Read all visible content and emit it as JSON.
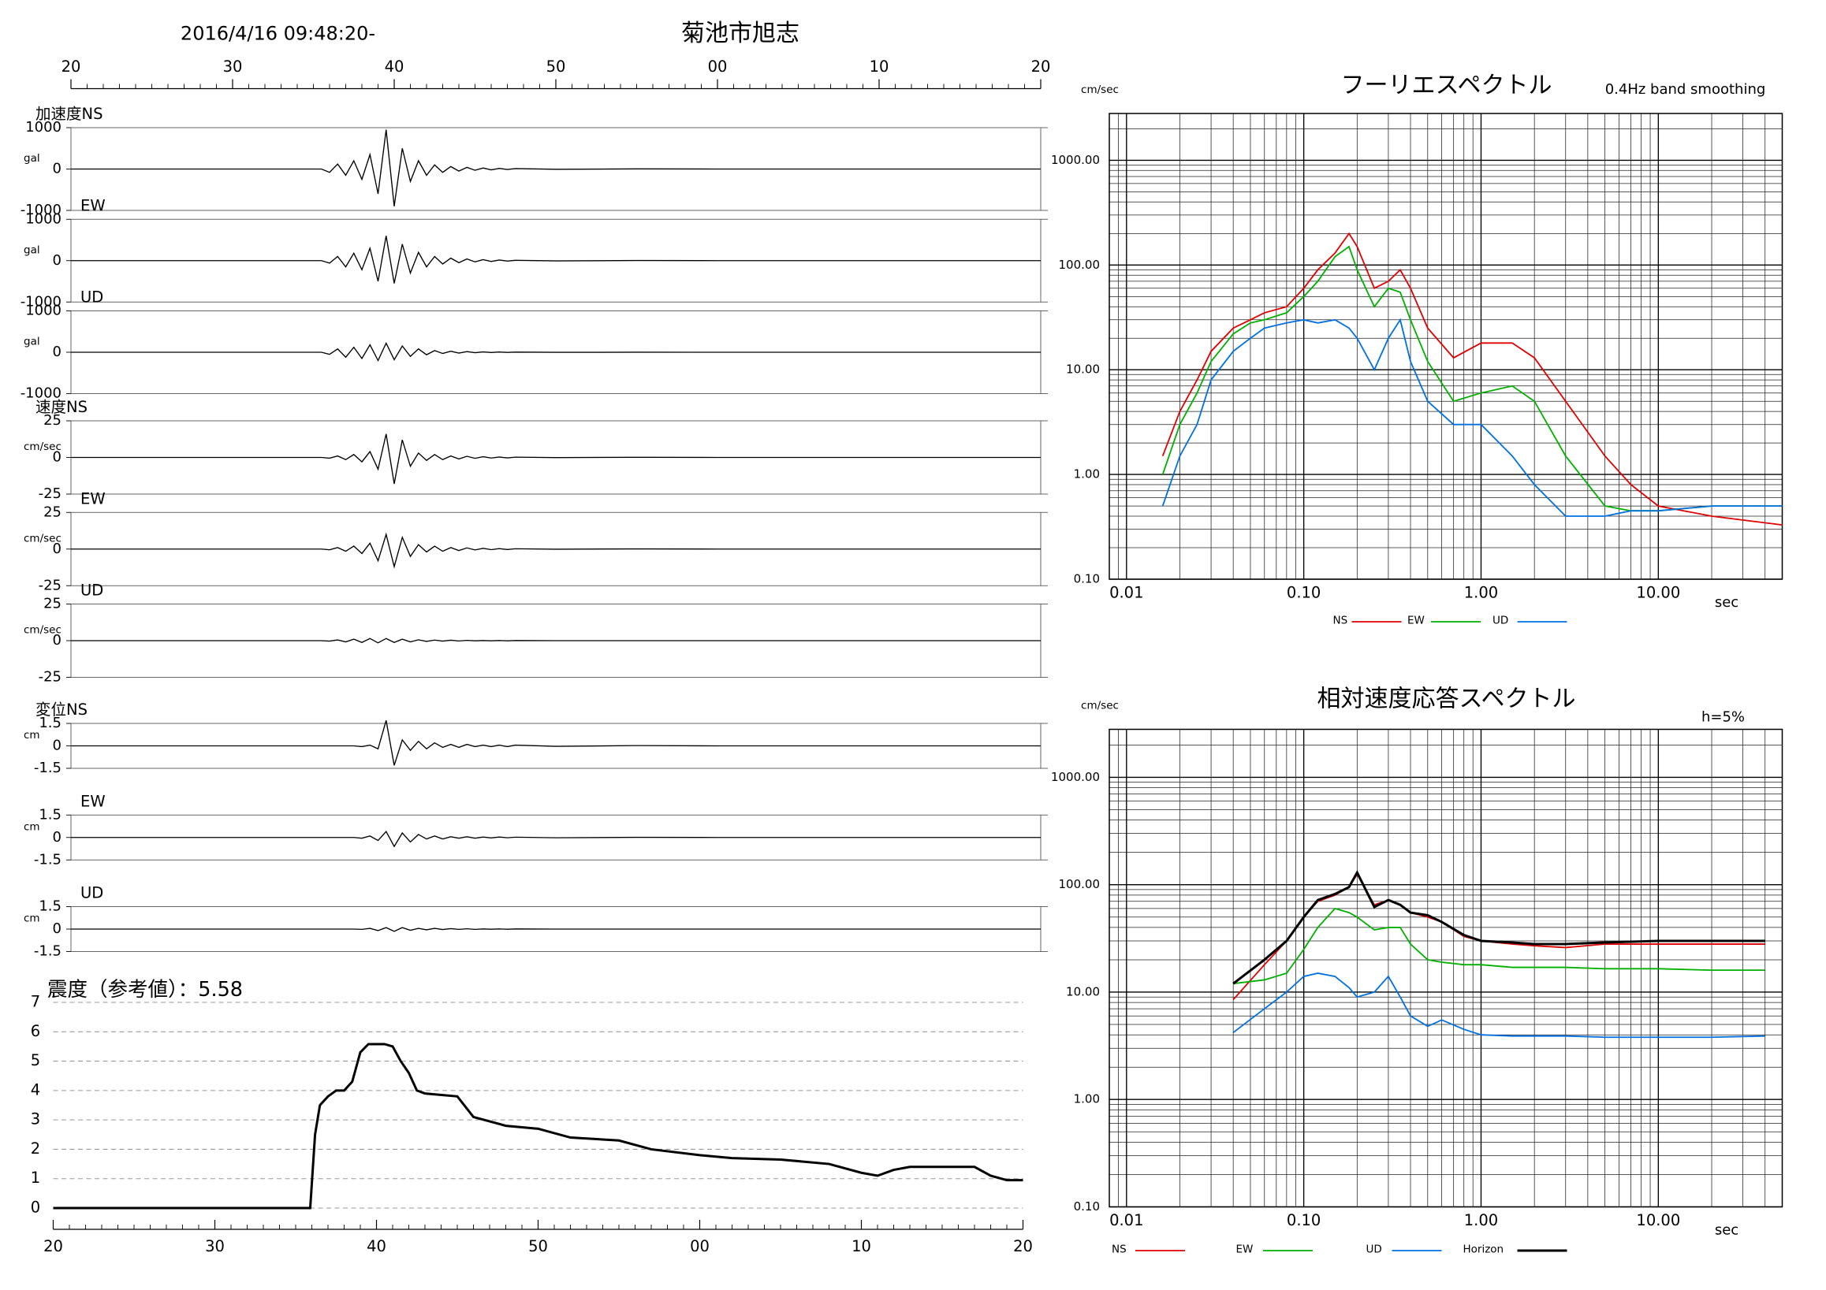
{
  "chart_data": [
    {
      "type": "waveform",
      "title": "菊池市旭志",
      "subtitle": "2016/4/16 09:48:20-",
      "xlim": [
        20,
        80
      ],
      "xticks": [
        20,
        30,
        40,
        50,
        {
          "value": 60,
          "label": "00"
        },
        {
          "value": 70,
          "label": "10"
        },
        {
          "value": 80,
          "label": "20"
        }
      ],
      "x": [
        20,
        35.5,
        36,
        36.5,
        37,
        37.5,
        38,
        38.5,
        39,
        39.5,
        40,
        40.5,
        41,
        41.5,
        42,
        42.5,
        43,
        43.5,
        44,
        44.5,
        45,
        45.5,
        46,
        46.5,
        47,
        47.5,
        50,
        55,
        60,
        80
      ],
      "color": "#000000",
      "panels": [
        {
          "label": "加速度NS",
          "unit": "gal",
          "ylim": [
            -1000,
            1000
          ],
          "yticks": [
            -1000,
            0,
            1000
          ],
          "values": [
            0,
            0,
            -80,
            120,
            -150,
            200,
            -250,
            350,
            -600,
            950,
            -900,
            500,
            -300,
            200,
            -150,
            100,
            -80,
            60,
            -50,
            40,
            -30,
            25,
            -20,
            15,
            -10,
            10,
            -5,
            3,
            0,
            0
          ]
        },
        {
          "label": "EW",
          "unit": "gal",
          "ylim": [
            -1000,
            1000
          ],
          "yticks": [
            -1000,
            0,
            1000
          ],
          "values": [
            0,
            0,
            -60,
            100,
            -150,
            180,
            -220,
            300,
            -500,
            600,
            -550,
            400,
            -300,
            200,
            -150,
            100,
            -80,
            60,
            -50,
            40,
            -30,
            25,
            -20,
            15,
            -10,
            8,
            -5,
            3,
            0,
            0
          ]
        },
        {
          "label": "UD",
          "unit": "gal",
          "ylim": [
            -1000,
            1000
          ],
          "yticks": [
            -1000,
            0,
            1000
          ],
          "values": [
            0,
            0,
            -50,
            80,
            -120,
            120,
            -150,
            180,
            -200,
            220,
            -180,
            150,
            -100,
            80,
            -60,
            40,
            -30,
            25,
            -20,
            15,
            -10,
            8,
            -6,
            5,
            -4,
            3,
            -2,
            1,
            0,
            0
          ]
        },
        {
          "label": "速度NS",
          "unit": "cm/sec",
          "ylim": [
            -25,
            25
          ],
          "yticks": [
            -25,
            0,
            25
          ],
          "values": [
            0,
            0,
            -0.5,
            1,
            -1.5,
            2,
            -3,
            4,
            -8,
            16,
            -18,
            12,
            -6,
            3,
            -2,
            2,
            -1.5,
            1,
            -1,
            0.8,
            -0.6,
            0.5,
            -0.4,
            0.3,
            -0.3,
            0.2,
            -0.1,
            0.1,
            0,
            0
          ]
        },
        {
          "label": "EW",
          "unit": "cm/sec",
          "ylim": [
            -25,
            25
          ],
          "yticks": [
            -25,
            0,
            25
          ],
          "values": [
            0,
            0,
            -0.5,
            1,
            -1.5,
            2,
            -3,
            4,
            -8,
            10,
            -12,
            8,
            -5,
            3,
            -2,
            2,
            -1.5,
            1,
            -1,
            0.8,
            -0.6,
            0.5,
            -0.4,
            0.3,
            -0.3,
            0.2,
            -0.1,
            0.1,
            0,
            0
          ]
        },
        {
          "label": "UD",
          "unit": "cm/sec",
          "ylim": [
            -25,
            25
          ],
          "yticks": [
            -25,
            0,
            25
          ],
          "values": [
            0,
            0,
            -0.3,
            0.5,
            -0.8,
            1,
            -1.2,
            1.5,
            -1.5,
            1.5,
            -1.2,
            1,
            -0.8,
            0.6,
            -0.5,
            0.4,
            -0.3,
            0.3,
            -0.2,
            0.2,
            -0.1,
            0.1,
            -0.1,
            0.1,
            -0.1,
            0.1,
            0,
            0,
            0,
            0
          ]
        },
        {
          "label": "変位NS",
          "unit": "cm",
          "ylim": [
            -1.5,
            1.5
          ],
          "yticks": [
            -1.5,
            0,
            1.5
          ],
          "values": [
            0,
            0,
            0,
            0,
            0,
            0,
            -0.05,
            0.05,
            -0.2,
            1.7,
            -1.3,
            0.4,
            -0.3,
            0.3,
            -0.2,
            0.2,
            -0.1,
            0.1,
            -0.1,
            0.1,
            -0.05,
            0.05,
            -0.05,
            0.05,
            -0.05,
            0.05,
            -0.03,
            0.02,
            0,
            0
          ]
        },
        {
          "label": "EW",
          "unit": "cm",
          "ylim": [
            -1.5,
            1.5
          ],
          "yticks": [
            -1.5,
            0,
            1.5
          ],
          "values": [
            0,
            0,
            0,
            0,
            0,
            0,
            -0.05,
            0.1,
            -0.2,
            0.4,
            -0.6,
            0.3,
            -0.3,
            0.2,
            -0.1,
            0.1,
            -0.1,
            0.05,
            -0.05,
            0.05,
            -0.05,
            0.03,
            -0.03,
            0.03,
            -0.02,
            0.02,
            -0.02,
            0.01,
            0,
            0
          ]
        },
        {
          "label": "UD",
          "unit": "cm",
          "ylim": [
            -1.5,
            1.5
          ],
          "yticks": [
            -1.5,
            0,
            1.5
          ],
          "values": [
            0,
            0,
            0,
            0,
            0,
            0,
            -0.02,
            0.05,
            -0.1,
            0.1,
            -0.15,
            0.1,
            -0.08,
            0.05,
            -0.05,
            0.05,
            -0.03,
            0.03,
            -0.02,
            0.02,
            -0.02,
            0.01,
            -0.01,
            0.01,
            -0.01,
            0.01,
            0,
            0,
            0,
            0
          ]
        }
      ]
    },
    {
      "type": "line",
      "title": "震度（参考値）：5.58",
      "color": "#000000",
      "grid": true,
      "xlim": [
        20,
        80
      ],
      "xticks": [
        20,
        30,
        40,
        50,
        {
          "value": 60,
          "label": "00"
        },
        {
          "value": 70,
          "label": "10"
        },
        {
          "value": 80,
          "label": "20"
        }
      ],
      "ylim": [
        0,
        7
      ],
      "yticks": [
        0,
        1,
        2,
        3,
        4,
        5,
        6,
        7
      ],
      "x": [
        20,
        35.9,
        36.2,
        36.5,
        37,
        37.5,
        38,
        38.5,
        39,
        39.5,
        40.5,
        41,
        41.5,
        42,
        42.5,
        43,
        45,
        46,
        48,
        50,
        52,
        55,
        57,
        60,
        62,
        65,
        68,
        70,
        71,
        72,
        73,
        77,
        78,
        79,
        80
      ],
      "values": [
        0,
        0,
        2.5,
        3.5,
        3.8,
        4.0,
        4.0,
        4.3,
        5.3,
        5.58,
        5.58,
        5.5,
        5.0,
        4.6,
        4.0,
        3.9,
        3.8,
        3.1,
        2.8,
        2.7,
        2.4,
        2.3,
        2.0,
        1.8,
        1.7,
        1.65,
        1.5,
        1.2,
        1.1,
        1.3,
        1.4,
        1.4,
        1.1,
        0.95,
        0.95
      ]
    },
    {
      "type": "loglog",
      "title": "フーリエスペクトル",
      "subtitle": "0.4Hz band smoothing",
      "y_label": "cm/sec",
      "x_label": "sec",
      "log_scale": true,
      "grid": true,
      "xlim": [
        0.008,
        50
      ],
      "xticks": [
        {
          "value": 0.01,
          "label": "0.01"
        },
        {
          "value": 0.1,
          "label": "0.10"
        },
        {
          "value": 1,
          "label": "1.00"
        },
        {
          "value": 10,
          "label": "10.00"
        }
      ],
      "ylim": [
        0.1,
        2800
      ],
      "yticks": [
        {
          "value": 0.1,
          "label": "0.10"
        },
        {
          "value": 1,
          "label": "1.00"
        },
        {
          "value": 10,
          "label": "10.00"
        },
        {
          "value": 100,
          "label": "100.00"
        },
        {
          "value": 1000,
          "label": "1000.00"
        }
      ],
      "x": [
        0.016,
        0.02,
        0.025,
        0.03,
        0.04,
        0.05,
        0.06,
        0.08,
        0.1,
        0.12,
        0.15,
        0.18,
        0.2,
        0.25,
        0.3,
        0.35,
        0.4,
        0.5,
        0.7,
        1.0,
        1.5,
        2,
        3,
        5,
        7,
        10,
        20,
        50
      ],
      "series": [
        {
          "name": "NS",
          "color": "#e00000",
          "values": [
            1.5,
            4,
            8,
            15,
            25,
            30,
            35,
            40,
            60,
            90,
            130,
            200,
            150,
            60,
            70,
            90,
            60,
            25,
            13,
            18,
            18,
            13,
            5,
            1.5,
            0.8,
            0.5,
            0.4,
            0.33
          ]
        },
        {
          "name": "EW",
          "color": "#00b000",
          "values": [
            1,
            3,
            6,
            12,
            22,
            28,
            30,
            35,
            50,
            70,
            120,
            150,
            90,
            40,
            60,
            55,
            30,
            12,
            5,
            6,
            7,
            5,
            1.5,
            0.5,
            0.45,
            0.45,
            0.5,
            0.5
          ]
        },
        {
          "name": "UD",
          "color": "#0070e0",
          "values": [
            0.5,
            1.5,
            3,
            8,
            15,
            20,
            25,
            28,
            30,
            28,
            30,
            25,
            20,
            10,
            20,
            30,
            12,
            5,
            3,
            3,
            1.5,
            0.8,
            0.4,
            0.4,
            0.45,
            0.45,
            0.5,
            0.5
          ]
        }
      ]
    },
    {
      "type": "loglog",
      "title": "相対速度応答スペクトル",
      "annotation": "h=5%",
      "y_label": "cm/sec",
      "x_label": "sec",
      "log_scale": true,
      "grid": true,
      "xlim": [
        0.008,
        50
      ],
      "xticks": [
        {
          "value": 0.01,
          "label": "0.01"
        },
        {
          "value": 0.1,
          "label": "0.10"
        },
        {
          "value": 1,
          "label": "1.00"
        },
        {
          "value": 10,
          "label": "10.00"
        }
      ],
      "ylim": [
        0.1,
        2800
      ],
      "yticks": [
        {
          "value": 0.1,
          "label": "0.10"
        },
        {
          "value": 1,
          "label": "1.00"
        },
        {
          "value": 10,
          "label": "10.00"
        },
        {
          "value": 100,
          "label": "100.00"
        },
        {
          "value": 1000,
          "label": "1000.00"
        }
      ],
      "x": [
        0.04,
        0.06,
        0.08,
        0.1,
        0.12,
        0.15,
        0.18,
        0.2,
        0.25,
        0.3,
        0.35,
        0.4,
        0.5,
        0.6,
        0.8,
        1,
        1.5,
        2,
        3,
        5,
        10,
        20,
        40
      ],
      "series": [
        {
          "name": "NS",
          "color": "#e00000",
          "values": [
            8.5,
            18,
            30,
            50,
            70,
            80,
            95,
            125,
            65,
            72,
            65,
            55,
            50,
            45,
            33,
            30,
            28,
            27,
            26,
            28,
            28,
            28,
            28
          ]
        },
        {
          "name": "EW",
          "color": "#00b000",
          "values": [
            12,
            13,
            15,
            25,
            40,
            60,
            55,
            50,
            38,
            40,
            40,
            28,
            20,
            19,
            18,
            18,
            17,
            17,
            17,
            16.5,
            16.5,
            16,
            16
          ]
        },
        {
          "name": "UD",
          "color": "#0070e0",
          "values": [
            4.2,
            7,
            10,
            14,
            15,
            14,
            11,
            9,
            10,
            14,
            9,
            6,
            4.8,
            5.5,
            4.5,
            4,
            3.9,
            3.9,
            3.9,
            3.8,
            3.8,
            3.8,
            3.9
          ]
        },
        {
          "name": "Horizon",
          "color": "#000000",
          "values": [
            12,
            20,
            30,
            50,
            72,
            82,
            95,
            130,
            62,
            72,
            65,
            55,
            52,
            45,
            34,
            30,
            29,
            28,
            28,
            29,
            30,
            30,
            30
          ]
        }
      ]
    }
  ]
}
